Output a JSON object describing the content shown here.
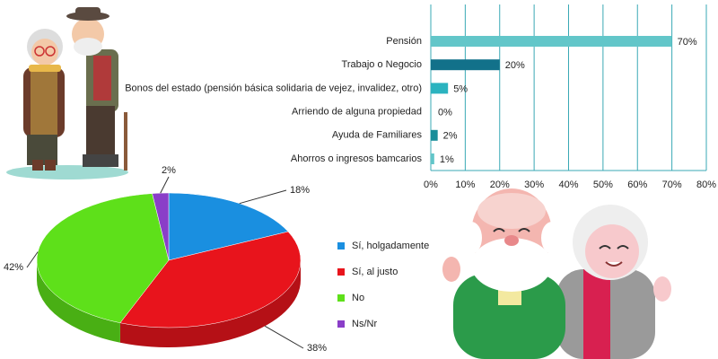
{
  "chart_data": [
    {
      "type": "bar",
      "horizontal": true,
      "categories": [
        "Pensión",
        "Trabajo o Negocio",
        "Bonos del estado (pensión básica solidaria de vejez, invalidez, otro)",
        "Arriendo de alguna propiedad",
        "Ayuda de Familiares",
        "Ahorros o ingresos bamcarios"
      ],
      "values": [
        70,
        20,
        5,
        0,
        2,
        1
      ],
      "value_labels": [
        "70%",
        "20%",
        "5%",
        "0%",
        "2%",
        "1%"
      ],
      "colors": [
        "#62c6c9",
        "#12718a",
        "#2bb3bf",
        "#62c6c9",
        "#1a8e9a",
        "#62c6c9"
      ],
      "xlim": [
        0,
        80
      ],
      "xticks": [
        {
          "value": 0,
          "label": "0%"
        },
        {
          "value": 10,
          "label": "10%"
        },
        {
          "value": 20,
          "label": "20%"
        },
        {
          "value": 30,
          "label": "30%"
        },
        {
          "value": 40,
          "label": "40%"
        },
        {
          "value": 50,
          "label": "50%"
        },
        {
          "value": 60,
          "label": "60%"
        },
        {
          "value": 70,
          "label": "70%"
        },
        {
          "value": 80,
          "label": "80%"
        }
      ],
      "grid": true
    },
    {
      "type": "pie",
      "categories": [
        "Sí, holgadamente",
        "Sí, al justo",
        "No",
        "Ns/Nr"
      ],
      "values": [
        18,
        38,
        42,
        2
      ],
      "value_labels": [
        "18%",
        "38%",
        "42%",
        "2%"
      ],
      "colors": [
        "#1a8fe0",
        "#e8141c",
        "#5ee01a",
        "#8a3ec8"
      ],
      "legend": "right"
    }
  ]
}
